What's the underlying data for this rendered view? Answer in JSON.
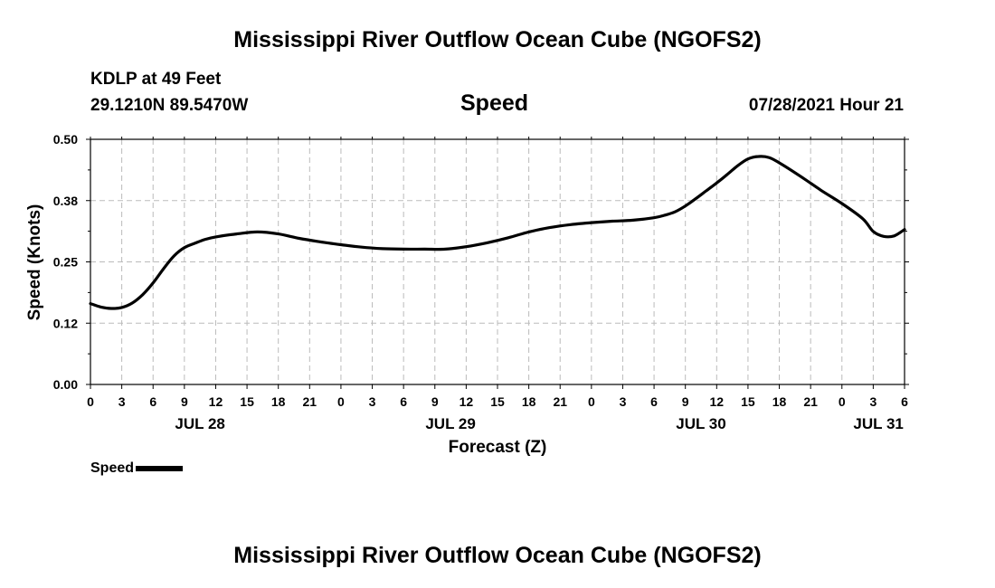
{
  "header": {
    "title": "Mississippi River Outflow Ocean Cube (NGOFS2)",
    "station": "KDLP at 49 Feet",
    "coords": "29.1210N  89.5470W",
    "datetime": "07/28/2021 Hour 21"
  },
  "footer": {
    "title": "Mississippi River Outflow Ocean Cube (NGOFS2)"
  },
  "colors": {
    "line": "#000000",
    "grid": "#bbbbbb",
    "background": "#ffffff"
  },
  "chart_data": {
    "type": "line",
    "title": "Speed",
    "xlabel": "Forecast (Z)",
    "ylabel": "Speed (Knots)",
    "xlim": [
      0,
      78
    ],
    "ylim": [
      0.0,
      0.5
    ],
    "yticks": [
      0.0,
      0.125,
      0.25,
      0.375,
      0.5
    ],
    "ytick_labels": [
      "0.00",
      "0.12",
      "0.25",
      "0.38",
      "0.50"
    ],
    "xticks": [
      0,
      3,
      6,
      9,
      12,
      15,
      18,
      21,
      24,
      27,
      30,
      33,
      36,
      39,
      42,
      45,
      48,
      51,
      54,
      57,
      60,
      63,
      66,
      69,
      72,
      75,
      78
    ],
    "xtick_labels": [
      "0",
      "3",
      "6",
      "9",
      "12",
      "15",
      "18",
      "21",
      "0",
      "3",
      "6",
      "9",
      "12",
      "15",
      "18",
      "21",
      "0",
      "3",
      "6",
      "9",
      "12",
      "15",
      "18",
      "21",
      "0",
      "3",
      "6"
    ],
    "date_labels": [
      {
        "hour": 10.5,
        "label": "JUL 28"
      },
      {
        "hour": 34.5,
        "label": "JUL 29"
      },
      {
        "hour": 58.5,
        "label": "JUL 30"
      },
      {
        "hour": 75.5,
        "label": "JUL 31"
      }
    ],
    "grid": true,
    "legend": "bottom-left",
    "series": [
      {
        "name": "Speed",
        "x": [
          0,
          1,
          2,
          3,
          4,
          5,
          6,
          7,
          8,
          9,
          10,
          11,
          12,
          14,
          16,
          18,
          20,
          22,
          24,
          26,
          28,
          30,
          32,
          34,
          36,
          38,
          40,
          42,
          44,
          46,
          48,
          50,
          52,
          54,
          55,
          56,
          57,
          58,
          59,
          60,
          61,
          62,
          63,
          64,
          65,
          66,
          68,
          70,
          72,
          74,
          75,
          76,
          77,
          78
        ],
        "y": [
          0.165,
          0.158,
          0.155,
          0.157,
          0.166,
          0.183,
          0.207,
          0.236,
          0.262,
          0.279,
          0.288,
          0.296,
          0.301,
          0.307,
          0.311,
          0.307,
          0.298,
          0.291,
          0.285,
          0.28,
          0.277,
          0.276,
          0.276,
          0.276,
          0.281,
          0.289,
          0.299,
          0.311,
          0.32,
          0.326,
          0.33,
          0.333,
          0.335,
          0.34,
          0.345,
          0.352,
          0.364,
          0.379,
          0.395,
          0.411,
          0.428,
          0.446,
          0.46,
          0.465,
          0.463,
          0.452,
          0.425,
          0.396,
          0.369,
          0.338,
          0.312,
          0.302,
          0.303,
          0.316
        ]
      }
    ]
  }
}
